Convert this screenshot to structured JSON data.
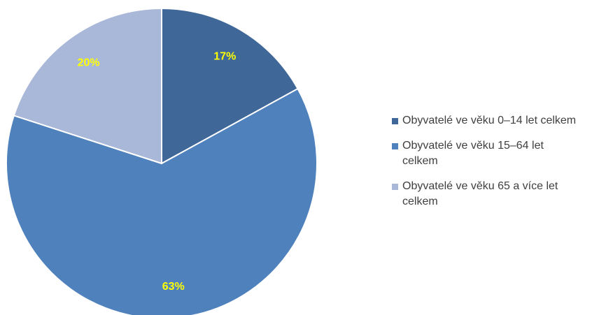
{
  "chart_data": {
    "type": "pie",
    "categories": [
      "Obyvatelé ve věku 0–14 let celkem",
      "Obyvatelé ve věku 15–64 let celkem",
      "Obyvatelé ve věku 65 a více let celkem"
    ],
    "values": [
      17,
      63,
      20
    ],
    "value_labels": [
      "17%",
      "63%",
      "20%"
    ],
    "colors": [
      "#3f6899",
      "#4f81bd",
      "#a9b8d8"
    ],
    "legend": "right"
  }
}
